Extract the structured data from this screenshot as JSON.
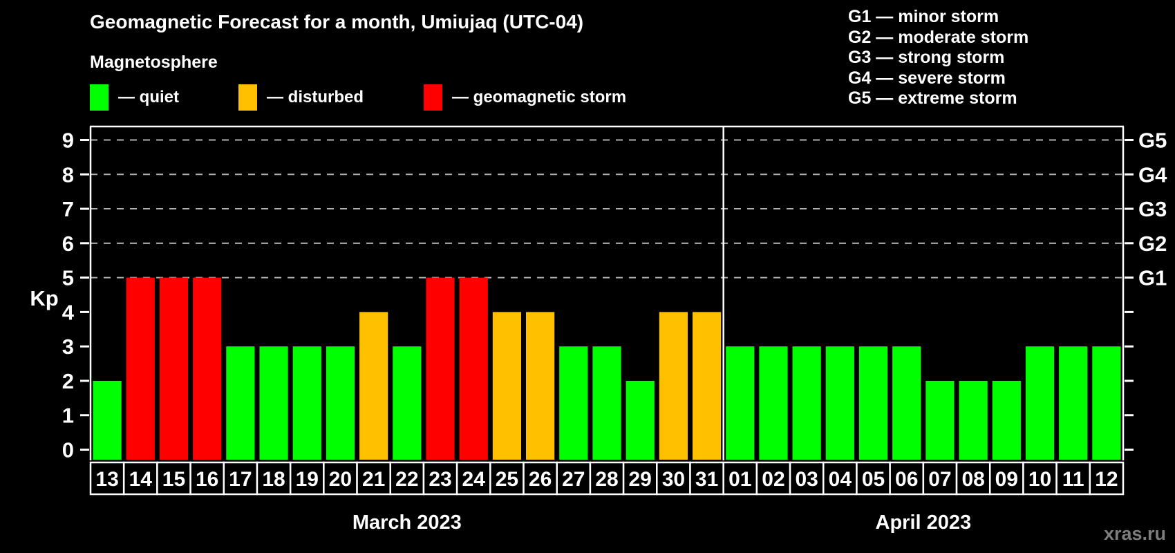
{
  "title": "Geomagnetic Forecast for a month, Umiujaq (UTC-04)",
  "subtitle": "Magnetosphere",
  "legend": {
    "items": [
      {
        "label": "— quiet",
        "state": "quiet",
        "color": "#00ff00"
      },
      {
        "label": "— disturbed",
        "state": "disturbed",
        "color": "#ffc000"
      },
      {
        "label": "— geomagnetic storm",
        "state": "storm",
        "color": "#ff0000"
      }
    ]
  },
  "g_legend": [
    "G1 — minor storm",
    "G2 — moderate storm",
    "G3 — strong storm",
    "G4 — severe storm",
    "G5 — extreme storm"
  ],
  "watermark": "xras.ru",
  "chart_data": {
    "type": "bar",
    "title": "Geomagnetic Forecast for a month, Umiujaq (UTC-04)",
    "ylabel": "Kp",
    "ylim": [
      0,
      9.4
    ],
    "yticks": [
      0,
      1,
      2,
      3,
      4,
      5,
      6,
      7,
      8,
      9
    ],
    "gridlines_at_kp": [
      5,
      6,
      7,
      8,
      9
    ],
    "grid_style": "dashed",
    "right_axis_labels": [
      {
        "kp": 9,
        "label": "G5"
      },
      {
        "kp": 8,
        "label": "G4"
      },
      {
        "kp": 7,
        "label": "G3"
      },
      {
        "kp": 6,
        "label": "G2"
      },
      {
        "kp": 5,
        "label": "G1"
      }
    ],
    "colors": {
      "quiet": "#00ff00",
      "disturbed": "#ffc000",
      "storm": "#ff0000"
    },
    "months": [
      {
        "label": "March 2023",
        "days": [
          {
            "day": "13",
            "kp": 2,
            "state": "quiet"
          },
          {
            "day": "14",
            "kp": 5,
            "state": "storm"
          },
          {
            "day": "15",
            "kp": 5,
            "state": "storm"
          },
          {
            "day": "16",
            "kp": 5,
            "state": "storm"
          },
          {
            "day": "17",
            "kp": 3,
            "state": "quiet"
          },
          {
            "day": "18",
            "kp": 3,
            "state": "quiet"
          },
          {
            "day": "19",
            "kp": 3,
            "state": "quiet"
          },
          {
            "day": "20",
            "kp": 3,
            "state": "quiet"
          },
          {
            "day": "21",
            "kp": 4,
            "state": "disturbed"
          },
          {
            "day": "22",
            "kp": 3,
            "state": "quiet"
          },
          {
            "day": "23",
            "kp": 5,
            "state": "storm"
          },
          {
            "day": "24",
            "kp": 5,
            "state": "storm"
          },
          {
            "day": "25",
            "kp": 4,
            "state": "disturbed"
          },
          {
            "day": "26",
            "kp": 4,
            "state": "disturbed"
          },
          {
            "day": "27",
            "kp": 3,
            "state": "quiet"
          },
          {
            "day": "28",
            "kp": 3,
            "state": "quiet"
          },
          {
            "day": "29",
            "kp": 2,
            "state": "quiet"
          },
          {
            "day": "30",
            "kp": 4,
            "state": "disturbed"
          },
          {
            "day": "31",
            "kp": 4,
            "state": "disturbed"
          }
        ]
      },
      {
        "label": "April 2023",
        "days": [
          {
            "day": "01",
            "kp": 3,
            "state": "quiet"
          },
          {
            "day": "02",
            "kp": 3,
            "state": "quiet"
          },
          {
            "day": "03",
            "kp": 3,
            "state": "quiet"
          },
          {
            "day": "04",
            "kp": 3,
            "state": "quiet"
          },
          {
            "day": "05",
            "kp": 3,
            "state": "quiet"
          },
          {
            "day": "06",
            "kp": 3,
            "state": "quiet"
          },
          {
            "day": "07",
            "kp": 2,
            "state": "quiet"
          },
          {
            "day": "08",
            "kp": 2,
            "state": "quiet"
          },
          {
            "day": "09",
            "kp": 2,
            "state": "quiet"
          },
          {
            "day": "10",
            "kp": 3,
            "state": "quiet"
          },
          {
            "day": "11",
            "kp": 3,
            "state": "quiet"
          },
          {
            "day": "12",
            "kp": 3,
            "state": "quiet"
          }
        ]
      }
    ]
  }
}
